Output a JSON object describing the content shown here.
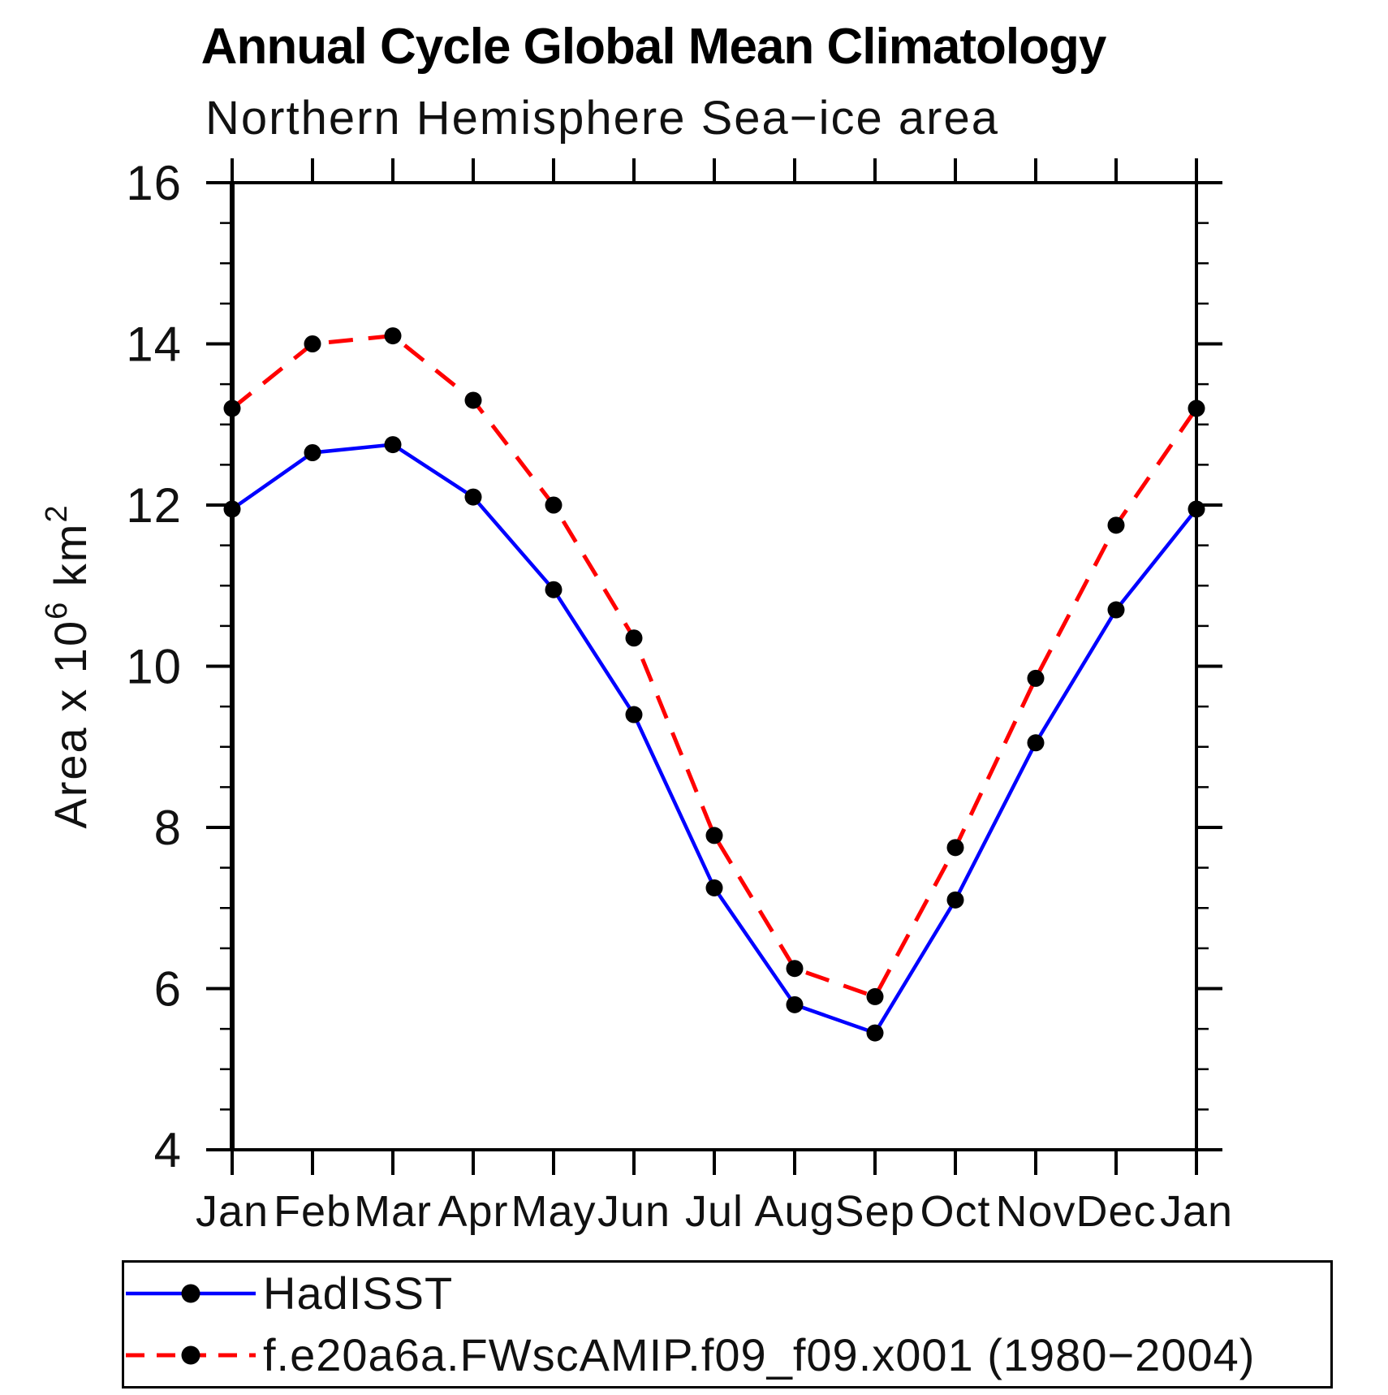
{
  "page": {
    "background": "#ffffff"
  },
  "header": {
    "title": "Annual Cycle Global Mean Climatology",
    "subtitle": "Northern Hemisphere Sea−ice area"
  },
  "chart_data": {
    "type": "line",
    "title": "Annual Cycle Global Mean Climatology",
    "subtitle": "Northern Hemisphere Sea−ice area",
    "ylabel": "Area x 10^6 km^2",
    "ylabel_parts": [
      {
        "text": "Area x 10",
        "sup": false
      },
      {
        "text": "6",
        "sup": true
      },
      {
        "text": " km",
        "sup": false
      },
      {
        "text": "2",
        "sup": true
      }
    ],
    "x_categories": [
      "Jan",
      "Feb",
      "Mar",
      "Apr",
      "May",
      "Jun",
      "Jul",
      "Aug",
      "Sep",
      "Oct",
      "Nov",
      "Dec",
      "Jan"
    ],
    "ylim": [
      4,
      16
    ],
    "yticks": [
      4,
      6,
      8,
      10,
      12,
      14,
      16
    ],
    "y_minor_step": 0.5,
    "grid": false,
    "legend_position": "bottom",
    "axis_color": "#000000",
    "marker": "filled-circle",
    "marker_color": "#000000",
    "series": [
      {
        "name": "HadISST",
        "color": "#0000ff",
        "line_style": "solid",
        "values": [
          11.95,
          12.65,
          12.75,
          12.1,
          10.95,
          9.4,
          7.25,
          5.8,
          5.45,
          7.1,
          9.05,
          10.7,
          11.95
        ]
      },
      {
        "name": "f.e20a6a.FWscAMIP.f09_f09.x001 (1980−2004)",
        "color": "#ff0000",
        "line_style": "dashed",
        "values": [
          13.2,
          14.0,
          14.1,
          13.3,
          12.0,
          10.35,
          7.9,
          6.25,
          5.9,
          7.75,
          9.85,
          11.75,
          13.2
        ]
      }
    ]
  }
}
